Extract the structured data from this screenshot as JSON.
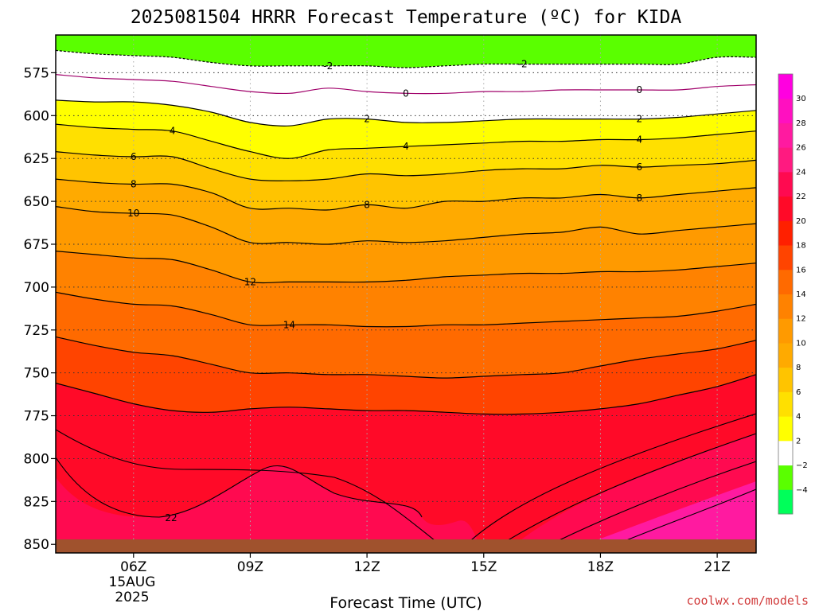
{
  "chart_data": {
    "type": "area",
    "title": "2025081504 HRRR Forecast Temperature (ºC) for KIDA",
    "xlabel": "Forecast Time (UTC)",
    "ylabel": "",
    "credit": "coolwx.com/models",
    "x_ticks": [
      "06Z",
      "09Z",
      "12Z",
      "15Z",
      "18Z",
      "21Z"
    ],
    "x_tick_hours": [
      6,
      9,
      12,
      15,
      18,
      21
    ],
    "x_sublabels": [
      "15AUG",
      "2025"
    ],
    "xlim": [
      4,
      22
    ],
    "y_ticks": [
      575,
      600,
      625,
      650,
      675,
      700,
      725,
      750,
      775,
      800,
      825,
      850
    ],
    "ylim": [
      553,
      855
    ],
    "y_axis": "pressure (hPa), increasing downward",
    "grid": true,
    "surface_pressure_hPa": 850.5,
    "colorbar": {
      "levels": [
        -4,
        -2,
        2,
        4,
        6,
        8,
        10,
        12,
        14,
        16,
        18,
        20,
        22,
        24,
        26,
        28,
        30
      ],
      "colors": [
        "#00ff5a",
        "#5aff00",
        "#ffffff",
        "#ffff00",
        "#ffe000",
        "#ffc400",
        "#ffaa00",
        "#ff9a00",
        "#ff8200",
        "#ff6a00",
        "#ff4400",
        "#ff2000",
        "#ff0a28",
        "#ff0a50",
        "#ff1a80",
        "#ff1aa0",
        "#ff10c0",
        "#ff00e0"
      ]
    },
    "contour_x_hours": [
      4,
      5,
      6,
      7,
      8,
      9,
      10,
      11,
      12,
      13,
      14,
      15,
      16,
      17,
      18,
      19,
      20,
      21,
      22
    ],
    "contours": [
      {
        "level": -2,
        "labels_at": [
          11,
          16
        ],
        "pressure": [
          562,
          564,
          565,
          566,
          569,
          571,
          571,
          571,
          571,
          572,
          571,
          570,
          570,
          570,
          570,
          570,
          570,
          566,
          566
        ]
      },
      {
        "level": 0,
        "labels_at": [
          13,
          19
        ],
        "pressure": [
          576,
          578,
          579,
          580,
          583,
          586,
          587,
          584,
          586,
          587,
          587,
          586,
          586,
          585,
          585,
          585,
          585,
          583,
          582
        ]
      },
      {
        "level": 2,
        "labels_at": [
          12,
          19
        ],
        "pressure": [
          591,
          592,
          592,
          594,
          598,
          604,
          606,
          602,
          602,
          604,
          604,
          603,
          602,
          602,
          602,
          602,
          601,
          599,
          597
        ]
      },
      {
        "level": 4,
        "labels_at": [
          7,
          13,
          19
        ],
        "pressure": [
          605,
          607,
          608,
          609,
          615,
          621,
          625,
          620,
          619,
          618,
          617,
          616,
          615,
          615,
          614,
          614,
          613,
          611,
          609
        ]
      },
      {
        "level": 6,
        "labels_at": [
          6,
          19
        ],
        "pressure": [
          621,
          623,
          624,
          624,
          631,
          637,
          638,
          637,
          634,
          635,
          634,
          632,
          631,
          631,
          629,
          630,
          629,
          628,
          626
        ]
      },
      {
        "level": 8,
        "labels_at": [
          6,
          12,
          19
        ],
        "pressure": [
          637,
          639,
          640,
          640,
          645,
          654,
          654,
          655,
          652,
          654,
          650,
          650,
          648,
          648,
          646,
          648,
          646,
          644,
          642
        ]
      },
      {
        "level": 10,
        "labels_at": [
          6
        ],
        "pressure": [
          653,
          656,
          657,
          658,
          665,
          674,
          674,
          675,
          673,
          674,
          673,
          671,
          669,
          668,
          665,
          669,
          667,
          665,
          663
        ]
      },
      {
        "level": 12,
        "labels_at": [
          9
        ],
        "pressure": [
          679,
          681,
          683,
          684,
          690,
          697,
          697,
          697,
          697,
          696,
          694,
          693,
          692,
          692,
          691,
          691,
          690,
          688,
          686
        ]
      },
      {
        "level": 14,
        "labels_at": [
          10
        ],
        "pressure": [
          703,
          707,
          710,
          711,
          716,
          722,
          722,
          722,
          723,
          723,
          722,
          722,
          721,
          720,
          719,
          718,
          717,
          714,
          710
        ]
      },
      {
        "level": 16,
        "labels_at": [],
        "pressure": [
          729,
          734,
          738,
          740,
          745,
          750,
          750,
          751,
          751,
          752,
          753,
          752,
          751,
          750,
          746,
          742,
          739,
          736,
          731
        ]
      },
      {
        "level": 18,
        "labels_at": [],
        "pressure": [
          756,
          762,
          768,
          772,
          773,
          771,
          770,
          771,
          772,
          772,
          773,
          774,
          774,
          773,
          771,
          768,
          763,
          758,
          751
        ]
      }
    ]
  }
}
